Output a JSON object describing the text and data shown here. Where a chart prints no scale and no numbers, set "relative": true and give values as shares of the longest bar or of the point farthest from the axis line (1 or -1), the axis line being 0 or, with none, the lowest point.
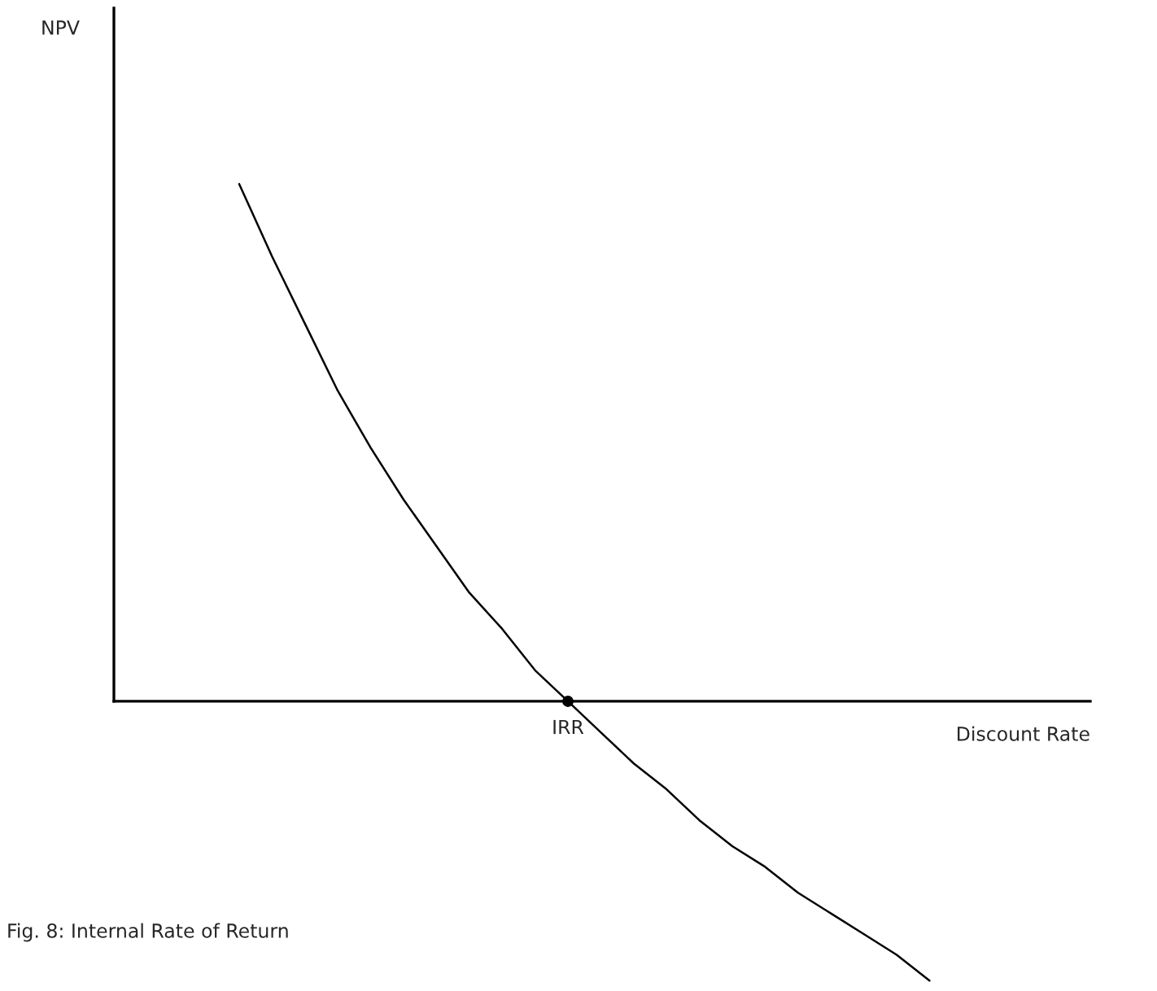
{
  "chart_data": {
    "type": "line",
    "relative": true,
    "xlabel": "Discount Rate",
    "annotations": [
      "IRR",
      "NPV",
      "Fig. 8: Internal Rate of Return"
    ],
    "categories": [
      null,
      null,
      null,
      null,
      null,
      null,
      null,
      null,
      null,
      null,
      null,
      null,
      null,
      null,
      null,
      null,
      null,
      null,
      null,
      null,
      null,
      null
    ],
    "series": [
      {
        "color": "#000000",
        "marker": "none",
        "values": [
          1.0,
          0.86,
          0.73,
          0.6,
          0.49,
          0.39,
          0.3,
          0.21,
          0.14,
          0.06,
          0,
          -0.06,
          -0.12,
          -0.17,
          -0.23,
          -0.28,
          -0.32,
          -0.37,
          -0.41,
          -0.45,
          -0.49,
          -0.54
        ]
      }
    ]
  }
}
